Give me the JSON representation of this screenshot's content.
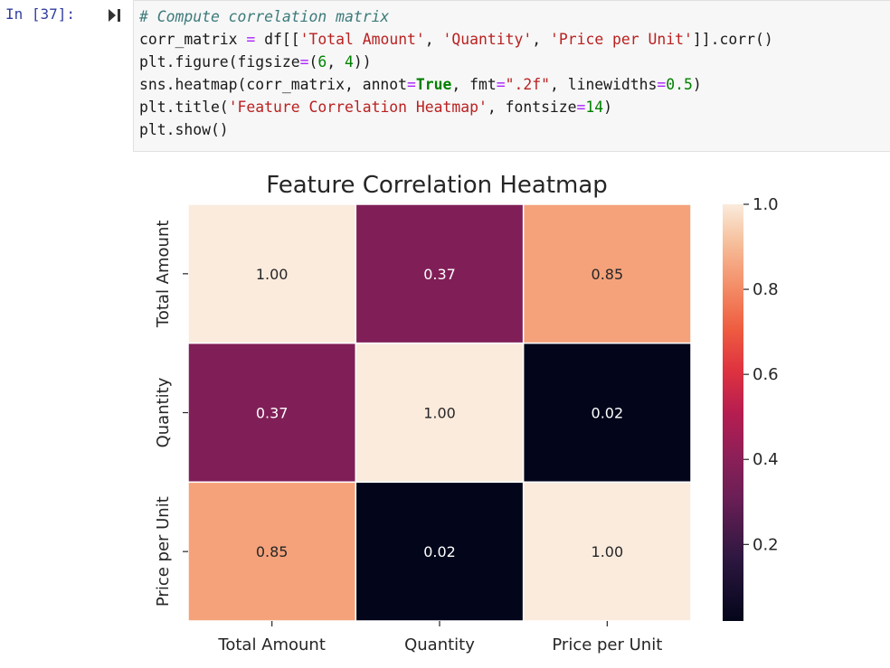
{
  "cell": {
    "prompt": "In [37]:",
    "run_icon": "run-cell-icon",
    "code": {
      "comment": "# Compute correlation matrix",
      "line2": {
        "a": "corr_matrix ",
        "eq": "=",
        "b": " df[[",
        "s1": "'Total Amount'",
        "c1": ", ",
        "s2": "'Quantity'",
        "c2": ", ",
        "s3": "'Price per Unit'",
        "c": "]].corr()"
      },
      "line3": {
        "a": "plt.figure(figsize",
        "eq": "=",
        "b": "(",
        "n1": "6",
        "c": ", ",
        "n2": "4",
        "d": "))"
      },
      "line4": {
        "a": "sns.heatmap(corr_matrix, annot",
        "eq1": "=",
        "kw": "True",
        "b": ", fmt",
        "eq2": "=",
        "s": "\".2f\"",
        "c": ", linewidths",
        "eq3": "=",
        "n": "0.5",
        "d": ")"
      },
      "line5": {
        "a": "plt.title(",
        "s": "'Feature Correlation Heatmap'",
        "b": ", fontsize",
        "eq": "=",
        "n": "14",
        "c": ")"
      },
      "line6": "plt.show()"
    }
  },
  "chart_data": {
    "type": "heatmap",
    "title": "Feature Correlation Heatmap",
    "x_labels": [
      "Total Amount",
      "Quantity",
      "Price per Unit"
    ],
    "y_labels": [
      "Total Amount",
      "Quantity",
      "Price per Unit"
    ],
    "values": [
      [
        1.0,
        0.37,
        0.85
      ],
      [
        0.37,
        1.0,
        0.02
      ],
      [
        0.85,
        0.02,
        1.0
      ]
    ],
    "annotations": [
      [
        "1.00",
        "0.37",
        "0.85"
      ],
      [
        "0.37",
        "1.00",
        "0.02"
      ],
      [
        "0.85",
        "0.02",
        "1.00"
      ]
    ],
    "colormap": "rocket",
    "colorbar": {
      "range": [
        0.02,
        1.0
      ],
      "ticks": [
        0.2,
        0.4,
        0.6,
        0.8,
        1.0
      ],
      "tick_labels": [
        "0.2",
        "0.4",
        "0.6",
        "0.8",
        "1.0"
      ]
    },
    "annotation_color_dark": "#262626",
    "annotation_color_light": "#ffffff"
  }
}
